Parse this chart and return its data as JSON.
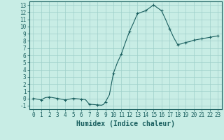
{
  "xlabel": "Humidex (Indice chaleur)",
  "background_color": "#c8ede5",
  "grid_color": "#9fcfca",
  "line_color": "#1a5f5f",
  "x_values": [
    0,
    0.5,
    1,
    1.5,
    2,
    2.5,
    3,
    3.5,
    4,
    4.5,
    5,
    5.5,
    6,
    6.5,
    7,
    7.5,
    8,
    8.25,
    8.5,
    8.75,
    9,
    9.5,
    10,
    10.5,
    11,
    11.5,
    12,
    12.5,
    13,
    13.5,
    14,
    14.5,
    15,
    15.5,
    16,
    16.5,
    17,
    17.5,
    18,
    18.5,
    19,
    19.5,
    20,
    20.5,
    21,
    21.5,
    22,
    22.5,
    23
  ],
  "y_values": [
    0.0,
    -0.1,
    -0.2,
    0.1,
    0.2,
    0.1,
    0.0,
    -0.1,
    -0.2,
    -0.1,
    0.0,
    -0.05,
    -0.1,
    -0.15,
    -0.8,
    -0.85,
    -0.9,
    -0.92,
    -0.95,
    -0.85,
    -0.5,
    0.5,
    3.5,
    5.0,
    6.2,
    7.8,
    9.3,
    10.5,
    11.8,
    12.0,
    12.2,
    12.6,
    13.0,
    12.6,
    12.2,
    11.0,
    9.7,
    8.5,
    7.5,
    7.6,
    7.8,
    7.9,
    8.1,
    8.2,
    8.3,
    8.4,
    8.5,
    8.6,
    8.7
  ],
  "marker_x": [
    0,
    1,
    2,
    3,
    4,
    5,
    6,
    7,
    8,
    9,
    10,
    11,
    12,
    13,
    14,
    15,
    16,
    17,
    18,
    19,
    20,
    21,
    22,
    23
  ],
  "marker_y": [
    0.0,
    -0.2,
    0.2,
    0.0,
    -0.2,
    0.0,
    -0.1,
    -0.8,
    -0.9,
    -0.5,
    3.5,
    6.2,
    9.3,
    11.8,
    12.2,
    13.0,
    12.2,
    9.7,
    7.5,
    7.8,
    8.1,
    8.3,
    8.5,
    8.7
  ],
  "ylim": [
    -1.5,
    13.5
  ],
  "xlim": [
    -0.5,
    23.5
  ],
  "yticks": [
    -1,
    0,
    1,
    2,
    3,
    4,
    5,
    6,
    7,
    8,
    9,
    10,
    11,
    12,
    13
  ],
  "xticks": [
    0,
    1,
    2,
    3,
    4,
    5,
    6,
    7,
    8,
    9,
    10,
    11,
    12,
    13,
    14,
    15,
    16,
    17,
    18,
    19,
    20,
    21,
    22,
    23
  ],
  "tick_fontsize": 5.5,
  "xlabel_fontsize": 7.0
}
